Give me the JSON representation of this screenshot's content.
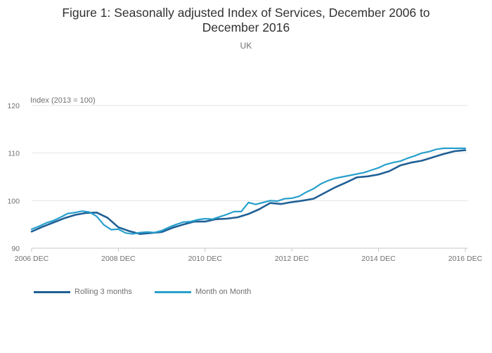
{
  "title_line1": "Figure 1: Seasonally adjusted Index of Services, December 2006 to",
  "title_line2": "December 2016",
  "subtitle": "UK",
  "chart_data": {
    "type": "line",
    "title": "Figure 1: Seasonally adjusted Index of Services, December 2006 to December 2016",
    "subtitle": "UK",
    "ylabel": "Index (2013 = 100)",
    "xlabel": "",
    "ylim": [
      90,
      120
    ],
    "yticks": [
      90,
      100,
      110,
      120
    ],
    "xticks": [
      {
        "label": "2006 DEC",
        "year": 2006
      },
      {
        "label": "2008 DEC",
        "year": 2008
      },
      {
        "label": "2010 DEC",
        "year": 2010
      },
      {
        "label": "2012 DEC",
        "year": 2012
      },
      {
        "label": "2014 DEC",
        "year": 2014
      },
      {
        "label": "2016 DEC",
        "year": 2016
      }
    ],
    "grid": true,
    "legend_position": "bottom-left",
    "series": [
      {
        "name": "Rolling 3 months",
        "color": "#206095",
        "x": [
          "2006-12",
          "2007-03",
          "2007-06",
          "2007-09",
          "2007-12",
          "2008-03",
          "2008-06",
          "2008-09",
          "2008-12",
          "2009-03",
          "2009-06",
          "2009-09",
          "2009-12",
          "2010-03",
          "2010-06",
          "2010-09",
          "2010-12",
          "2011-03",
          "2011-06",
          "2011-09",
          "2011-12",
          "2012-03",
          "2012-06",
          "2012-09",
          "2012-12",
          "2013-03",
          "2013-06",
          "2013-09",
          "2013-12",
          "2014-03",
          "2014-06",
          "2014-09",
          "2014-12",
          "2015-03",
          "2015-06",
          "2015-09",
          "2015-12",
          "2016-03",
          "2016-06",
          "2016-09",
          "2016-12"
        ],
        "values": [
          93.5,
          94.5,
          95.4,
          96.3,
          97.0,
          97.4,
          97.5,
          96.4,
          94.4,
          93.6,
          93.0,
          93.2,
          93.4,
          94.3,
          95.0,
          95.6,
          95.6,
          96.1,
          96.2,
          96.5,
          97.2,
          98.2,
          99.5,
          99.3,
          99.7,
          100.0,
          100.4,
          101.6,
          102.8,
          103.8,
          104.9,
          105.1,
          105.5,
          106.2,
          107.4,
          108.0,
          108.4,
          109.1,
          109.8,
          110.4,
          110.6
        ]
      },
      {
        "name": "Month on Month",
        "color": "#27a0cc",
        "x": [
          "2006-12",
          "2007-02",
          "2007-04",
          "2007-06",
          "2007-08",
          "2007-10",
          "2007-12",
          "2008-02",
          "2008-04",
          "2008-06",
          "2008-08",
          "2008-10",
          "2008-12",
          "2009-02",
          "2009-04",
          "2009-06",
          "2009-08",
          "2009-10",
          "2009-12",
          "2010-02",
          "2010-04",
          "2010-06",
          "2010-08",
          "2010-10",
          "2010-12",
          "2011-02",
          "2011-04",
          "2011-06",
          "2011-08",
          "2011-10",
          "2011-12",
          "2012-02",
          "2012-04",
          "2012-06",
          "2012-08",
          "2012-10",
          "2012-12",
          "2013-02",
          "2013-04",
          "2013-06",
          "2013-08",
          "2013-10",
          "2013-12",
          "2014-02",
          "2014-04",
          "2014-06",
          "2014-08",
          "2014-10",
          "2014-12",
          "2015-02",
          "2015-04",
          "2015-06",
          "2015-08",
          "2015-10",
          "2015-12",
          "2016-02",
          "2016-04",
          "2016-06",
          "2016-08",
          "2016-10",
          "2016-12"
        ],
        "values": [
          94.0,
          94.6,
          95.3,
          95.8,
          96.5,
          97.3,
          97.5,
          97.8,
          97.6,
          96.7,
          94.9,
          93.9,
          94.0,
          93.2,
          93.0,
          93.3,
          93.4,
          93.3,
          93.7,
          94.4,
          95.0,
          95.5,
          95.6,
          96.0,
          96.2,
          96.1,
          96.6,
          97.1,
          97.7,
          97.7,
          99.6,
          99.2,
          99.6,
          100.0,
          99.9,
          100.4,
          100.5,
          100.9,
          101.8,
          102.5,
          103.5,
          104.2,
          104.7,
          105.0,
          105.3,
          105.6,
          105.9,
          106.4,
          106.9,
          107.6,
          108.0,
          108.3,
          108.9,
          109.4,
          110.0,
          110.3,
          110.8,
          111.0,
          111.0,
          111.0,
          111.0
        ]
      }
    ]
  },
  "legend": {
    "item1": "Rolling 3 months",
    "item2": "Month on Month"
  }
}
